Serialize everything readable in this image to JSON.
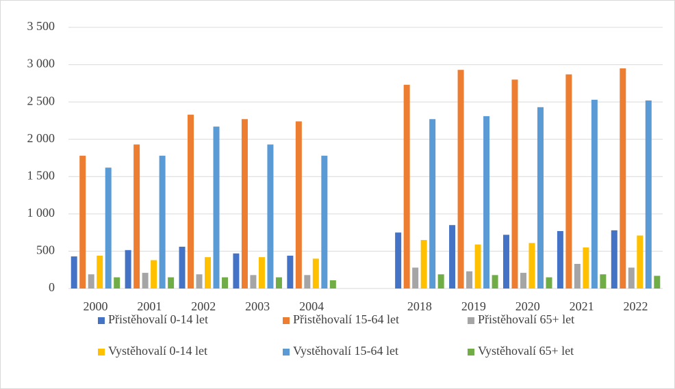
{
  "chart_data": {
    "type": "bar",
    "categories": [
      "2000",
      "2001",
      "2002",
      "2003",
      "2004",
      null,
      "2018",
      "2019",
      "2020",
      "2021",
      "2022"
    ],
    "series": [
      {
        "name": "Přistěhovalí 0-14 let",
        "color": "#4472c4",
        "values": [
          430,
          515,
          560,
          470,
          440,
          null,
          750,
          850,
          720,
          770,
          780
        ]
      },
      {
        "name": "Přistěhovalí 15-64 let",
        "color": "#ed7d31",
        "values": [
          1780,
          1930,
          2330,
          2270,
          2240,
          null,
          2730,
          2930,
          2800,
          2870,
          2950
        ]
      },
      {
        "name": "Přistěhovalí 65+ let",
        "color": "#a5a5a5",
        "values": [
          190,
          210,
          190,
          180,
          180,
          null,
          280,
          230,
          210,
          330,
          280
        ]
      },
      {
        "name": "Vystěhovalí 0-14 let",
        "color": "#ffc000",
        "values": [
          440,
          380,
          420,
          420,
          400,
          null,
          650,
          590,
          610,
          550,
          710
        ]
      },
      {
        "name": "Vystěhovalí 15-64 let",
        "color": "#5b9bd5",
        "values": [
          1620,
          1780,
          2170,
          1930,
          1780,
          null,
          2270,
          2310,
          2430,
          2530,
          2520
        ]
      },
      {
        "name": "Vystěhovalí 65+ let",
        "color": "#70ad47",
        "values": [
          150,
          150,
          150,
          150,
          110,
          null,
          190,
          180,
          150,
          190,
          170
        ]
      }
    ],
    "ylim": [
      0,
      3500
    ],
    "yticks": [
      0,
      500,
      {
        "value": 1000,
        "label": "1 000"
      },
      {
        "value": 1500,
        "label": "1 500"
      },
      {
        "value": 2000,
        "label": "2 000"
      },
      {
        "value": 2500,
        "label": "2 500"
      },
      {
        "value": 3000,
        "label": "3 000"
      },
      {
        "value": 3500,
        "label": "3 500"
      }
    ],
    "grid": true,
    "legend": "bottom"
  }
}
